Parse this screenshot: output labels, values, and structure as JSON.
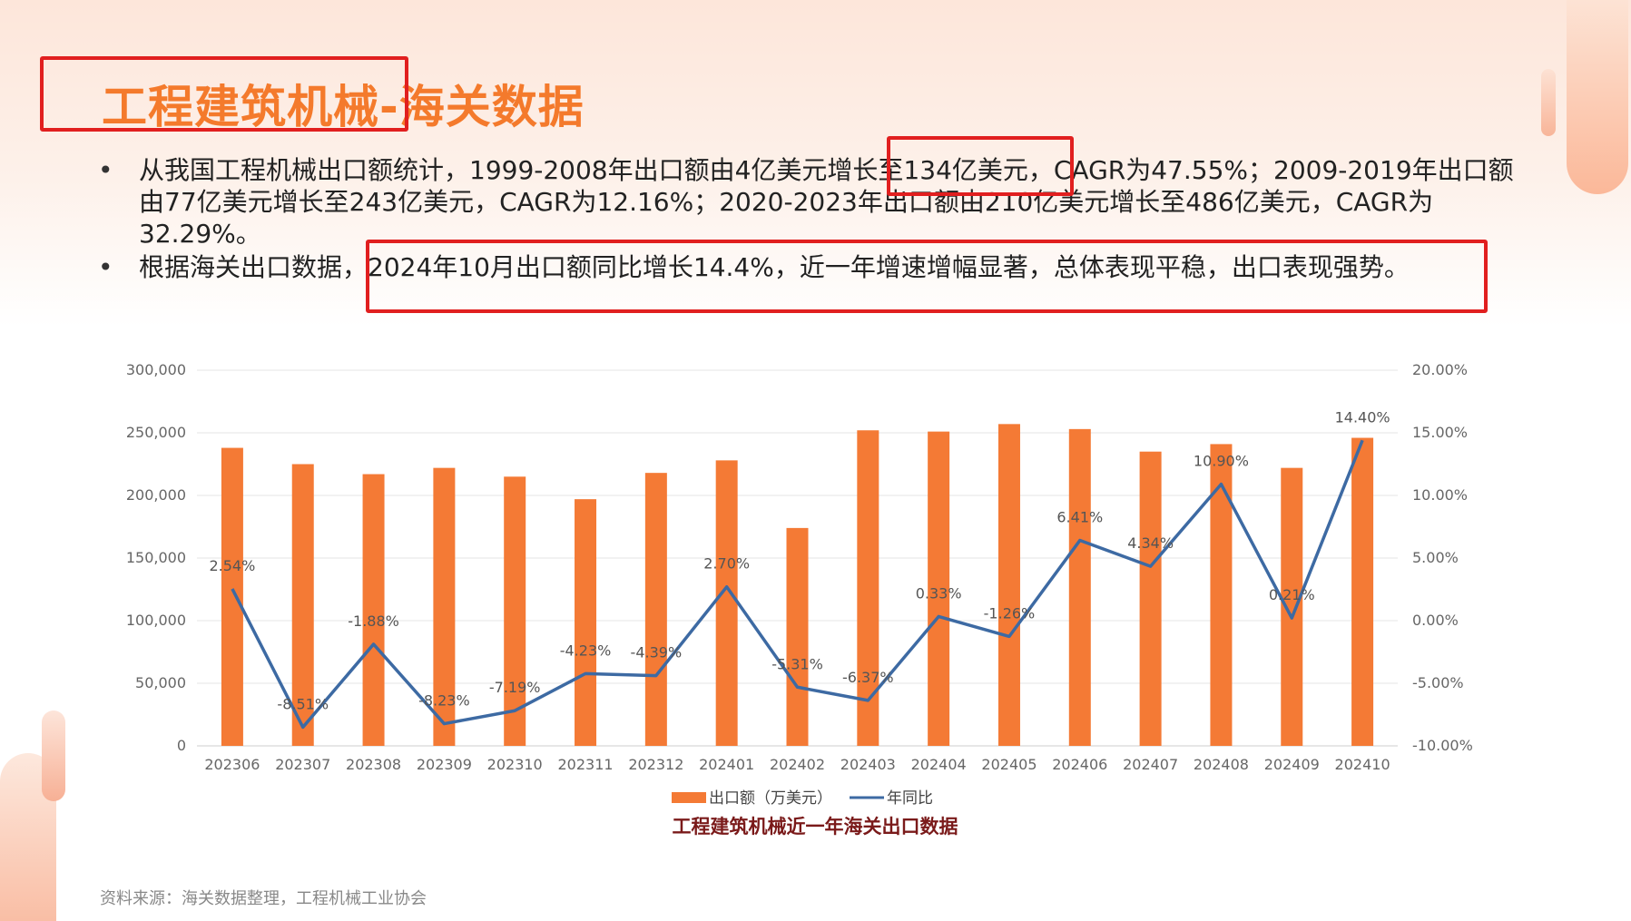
{
  "slide": {
    "title": "工程建筑机械-海关数据",
    "bullets": [
      "从我国工程机械出口额统计，1999-2008年出口额由4亿美元增长至134亿美元，CAGR为47.55%；2009-2019年出口额由77亿美元增长至243亿美元，CAGR为12.16%；2020-2023年出口额由210亿美元增长至486亿美元，CAGR为32.29%。",
      "根据海关出口数据，2024年10月出口额同比增长14.4%，近一年增速增幅显著，总体表现平稳，出口表现强势。"
    ],
    "source": "资料来源：海关数据整理，工程机械工业协会"
  },
  "colors": {
    "title": "#f47a2c",
    "bar": "#f47a35",
    "line": "#3d6aa3",
    "highlight_box": "#e11f1f",
    "chart_title": "#7a1a1a"
  },
  "chart_data": {
    "type": "bar",
    "title": "工程建筑机械近一年海关出口数据",
    "categories": [
      "202306",
      "202307",
      "202308",
      "202309",
      "202310",
      "202311",
      "202312",
      "202401",
      "202402",
      "202403",
      "202404",
      "202405",
      "202406",
      "202407",
      "202408",
      "202409",
      "202410"
    ],
    "series": [
      {
        "name": "出口额（万美元）",
        "type": "bar",
        "axis": "left",
        "values": [
          238000,
          225000,
          217000,
          222000,
          215000,
          197000,
          218000,
          228000,
          174000,
          252000,
          251000,
          257000,
          253000,
          235000,
          241000,
          222000,
          246000
        ]
      },
      {
        "name": "年同比",
        "type": "line",
        "axis": "right",
        "values": [
          2.54,
          -8.51,
          -1.88,
          -8.23,
          -7.19,
          -4.23,
          -4.39,
          2.7,
          -5.31,
          -6.37,
          0.33,
          -1.26,
          6.41,
          4.34,
          10.9,
          0.21,
          14.4
        ],
        "labels": [
          "2.54%",
          "-8.51%",
          "-1.88%",
          "-8.23%",
          "-7.19%",
          "-4.23%",
          "-4.39%",
          "2.70%",
          "-5.31%",
          "-6.37%",
          "0.33%",
          "-1.26%",
          "6.41%",
          "4.34%",
          "10.90%",
          "0.21%",
          "14.40%"
        ]
      }
    ],
    "y_left": {
      "min": 0,
      "max": 300000,
      "step": 50000,
      "ticks": [
        "0",
        "50,000",
        "100,000",
        "150,000",
        "200,000",
        "250,000",
        "300,000"
      ]
    },
    "y_right": {
      "min": -10,
      "max": 20,
      "step": 5,
      "ticks": [
        "-10.00%",
        "-5.00%",
        "0.00%",
        "5.00%",
        "10.00%",
        "15.00%",
        "20.00%"
      ]
    },
    "grid": true,
    "legend": "bottom"
  }
}
